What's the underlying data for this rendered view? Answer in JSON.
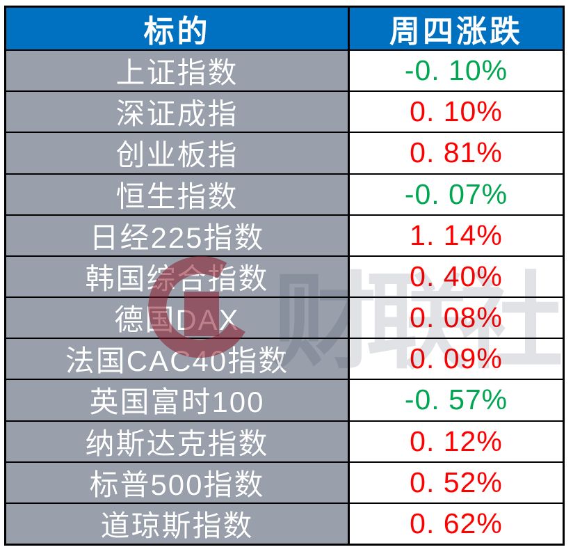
{
  "table": {
    "columns": [
      {
        "label": "标的"
      },
      {
        "label": "周四涨跌"
      }
    ],
    "rows": [
      {
        "name": "上证指数",
        "change": "-0. 10%",
        "direction": "down"
      },
      {
        "name": "深证成指",
        "change": "0. 10%",
        "direction": "up"
      },
      {
        "name": "创业板指",
        "change": "0. 81%",
        "direction": "up"
      },
      {
        "name": "恒生指数",
        "change": "-0. 07%",
        "direction": "down"
      },
      {
        "name": "日经225指数",
        "change": "1. 14%",
        "direction": "up"
      },
      {
        "name": "韩国综合指数",
        "change": "0. 40%",
        "direction": "up"
      },
      {
        "name": "德国DAX",
        "change": "0. 08%",
        "direction": "up"
      },
      {
        "name": "法国CAC40指数",
        "change": "0. 09%",
        "direction": "up"
      },
      {
        "name": "英国富时100",
        "change": "-0. 57%",
        "direction": "down"
      },
      {
        "name": "纳斯达克指数",
        "change": "0. 12%",
        "direction": "up"
      },
      {
        "name": "标普500指数",
        "change": "0. 52%",
        "direction": "up"
      },
      {
        "name": "道琼斯指数",
        "change": "0. 62%",
        "direction": "up"
      }
    ]
  },
  "chart_data": {
    "type": "table",
    "title": "",
    "columns": [
      "标的",
      "周四涨跌"
    ],
    "rows": [
      [
        "上证指数",
        "-0.10%"
      ],
      [
        "深证成指",
        "0.10%"
      ],
      [
        "创业板指",
        "0.81%"
      ],
      [
        "恒生指数",
        "-0.07%"
      ],
      [
        "日经225指数",
        "1.14%"
      ],
      [
        "韩国综合指数",
        "0.40%"
      ],
      [
        "德国DAX",
        "0.08%"
      ],
      [
        "法国CAC40指数",
        "0.09%"
      ],
      [
        "英国富时100",
        "-0.57%"
      ],
      [
        "纳斯达克指数",
        "0.12%"
      ],
      [
        "标普500指数",
        "0.52%"
      ],
      [
        "道琼斯指数",
        "0.62%"
      ]
    ],
    "values_pct": [
      -0.1,
      0.1,
      0.81,
      -0.07,
      1.14,
      0.4,
      0.08,
      0.09,
      -0.57,
      0.12,
      0.52,
      0.62
    ],
    "color_coding": "positive values red, negative values green"
  },
  "watermark": {
    "text": "财联社",
    "logo": "cailianpress-c-logo"
  },
  "colors": {
    "header_bg": "#0070C0",
    "header_text": "#FFFFFF",
    "label_bg": "#99A0AC",
    "label_text": "#FFFFFF",
    "up": "#FF0000",
    "down": "#00A651",
    "cell_bg": "#FFFFFF",
    "border": "#000000",
    "watermark_red": "#8B1A2B"
  }
}
